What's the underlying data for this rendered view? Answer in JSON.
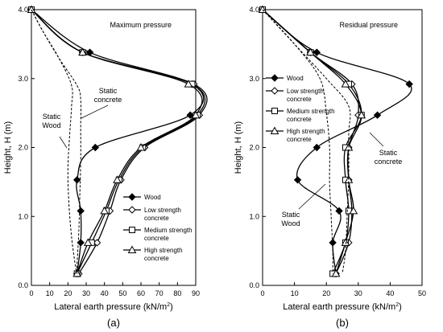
{
  "chart_data": [
    {
      "type": "line",
      "panel_label": "(a)",
      "title": "Maximum pressure",
      "xlabel": "Lateral earth pressure (kN/m",
      "xlabel_sup": "2",
      "xlabel_end": ")",
      "ylabel": "Height, H (m)",
      "xlim": [
        0,
        90
      ],
      "ylim": [
        0,
        4
      ],
      "xticks": [
        "0",
        "10",
        "20",
        "30",
        "40",
        "50",
        "60",
        "70",
        "80",
        "90"
      ],
      "yticks": [
        "0.0",
        "1.0",
        "2.0",
        "3.0",
        "4.0"
      ],
      "legend_position": "bottom-right",
      "series": [
        {
          "name": "Wood",
          "marker": "diamond-filled",
          "x": [
            0,
            32,
            88,
            87,
            35,
            25,
            27,
            27,
            25,
            25
          ],
          "y": [
            4.0,
            3.38,
            2.92,
            2.47,
            2.0,
            1.53,
            1.08,
            0.62,
            0.17,
            0.17
          ]
        },
        {
          "name": "Low strength concrete",
          "marker": "diamond-open",
          "x": [
            0,
            28,
            89,
            92,
            62,
            49,
            43,
            36,
            26
          ],
          "y": [
            4.0,
            3.38,
            2.92,
            2.47,
            2.0,
            1.53,
            1.08,
            0.62,
            0.17
          ]
        },
        {
          "name": "Medium strength concrete",
          "marker": "square-open",
          "x": [
            0,
            28,
            88,
            91,
            61,
            48,
            41,
            33,
            25
          ],
          "y": [
            4.0,
            3.38,
            2.92,
            2.47,
            2.0,
            1.53,
            1.08,
            0.62,
            0.17
          ]
        },
        {
          "name": "High strength concrete",
          "marker": "triangle-open",
          "x": [
            0,
            28,
            86,
            90,
            60,
            47,
            40,
            31,
            25
          ],
          "y": [
            4.0,
            3.38,
            2.92,
            2.47,
            2.0,
            1.53,
            1.08,
            0.62,
            0.17
          ]
        },
        {
          "name": "Static concrete",
          "style": "dashed",
          "x": [
            0,
            6,
            15,
            25,
            27,
            27,
            27,
            26.5,
            26,
            25,
            25
          ],
          "y": [
            4.0,
            3.7,
            3.3,
            2.9,
            2.7,
            2.3,
            1.8,
            1.3,
            0.8,
            0.3,
            0.17
          ]
        },
        {
          "name": "Static Wood",
          "style": "dashed",
          "x": [
            0,
            6,
            15,
            22,
            22,
            21,
            20,
            20.5,
            22,
            24,
            25
          ],
          "y": [
            4.0,
            3.7,
            3.3,
            2.9,
            2.6,
            2.2,
            1.7,
            1.2,
            0.7,
            0.3,
            0.17
          ]
        }
      ],
      "annotations": [
        {
          "text": "Static concrete"
        },
        {
          "text": "Static Wood"
        }
      ]
    },
    {
      "type": "line",
      "panel_label": "(b)",
      "title": "Residual pressure",
      "xlabel": "Lateral earth pressure (kN/m",
      "xlabel_sup": "2",
      "xlabel_end": ")",
      "ylabel": "Height, H (m)",
      "xlim": [
        0,
        50
      ],
      "ylim": [
        0,
        4
      ],
      "xticks": [
        "0",
        "10",
        "20",
        "30",
        "40",
        "50"
      ],
      "yticks": [
        "0.0",
        "1.0",
        "2.0",
        "3.0",
        "4.0"
      ],
      "legend_position": "top-left",
      "series": [
        {
          "name": "Wood",
          "marker": "diamond-filled",
          "x": [
            0,
            17,
            46,
            36,
            17,
            11,
            24,
            22,
            23
          ],
          "y": [
            4.0,
            3.38,
            2.92,
            2.47,
            2.0,
            1.53,
            1.08,
            0.62,
            0.17
          ]
        },
        {
          "name": "Low strength concrete",
          "marker": "diamond-open",
          "x": [
            0,
            15,
            28,
            30,
            27,
            27,
            28,
            27,
            23
          ],
          "y": [
            4.0,
            3.38,
            2.92,
            2.47,
            2.0,
            1.53,
            1.08,
            0.62,
            0.17
          ]
        },
        {
          "name": "Medium strength concrete",
          "marker": "square-open",
          "x": [
            0,
            15,
            27,
            31,
            26,
            26,
            27,
            26,
            22
          ],
          "y": [
            4.0,
            3.38,
            2.92,
            2.47,
            2.0,
            1.53,
            1.08,
            0.62,
            0.17
          ]
        },
        {
          "name": "High strength concrete",
          "marker": "triangle-open",
          "x": [
            0,
            15,
            26,
            31,
            27,
            27,
            28.5,
            26,
            23
          ],
          "y": [
            4.0,
            3.38,
            2.92,
            2.47,
            2.0,
            1.53,
            1.08,
            0.62,
            0.17
          ]
        },
        {
          "name": "Static concrete",
          "style": "dashed",
          "x": [
            0,
            10,
            20,
            27,
            27,
            27,
            26.5,
            26,
            25
          ],
          "y": [
            4.0,
            3.5,
            3.0,
            2.6,
            2.2,
            1.6,
            1.0,
            0.5,
            0.17
          ]
        },
        {
          "name": "Static Wood",
          "style": "dashed",
          "x": [
            0,
            10,
            18,
            20,
            21,
            21,
            21.5,
            22,
            22
          ],
          "y": [
            4.0,
            3.5,
            3.0,
            2.5,
            2.0,
            1.5,
            1.0,
            0.5,
            0.17
          ]
        }
      ],
      "annotations": [
        {
          "text": "Static concrete"
        },
        {
          "text": "Static Wood"
        }
      ]
    }
  ],
  "legend_labels": {
    "wood": "Wood",
    "low": [
      "Low strength",
      "concrete"
    ],
    "medium": [
      "Medium strength",
      "concrete"
    ],
    "high": [
      "High strength",
      "concrete"
    ]
  },
  "annotation_text": {
    "static_concrete": [
      "Static",
      "concrete"
    ],
    "static_wood": [
      "Static",
      "Wood"
    ]
  }
}
